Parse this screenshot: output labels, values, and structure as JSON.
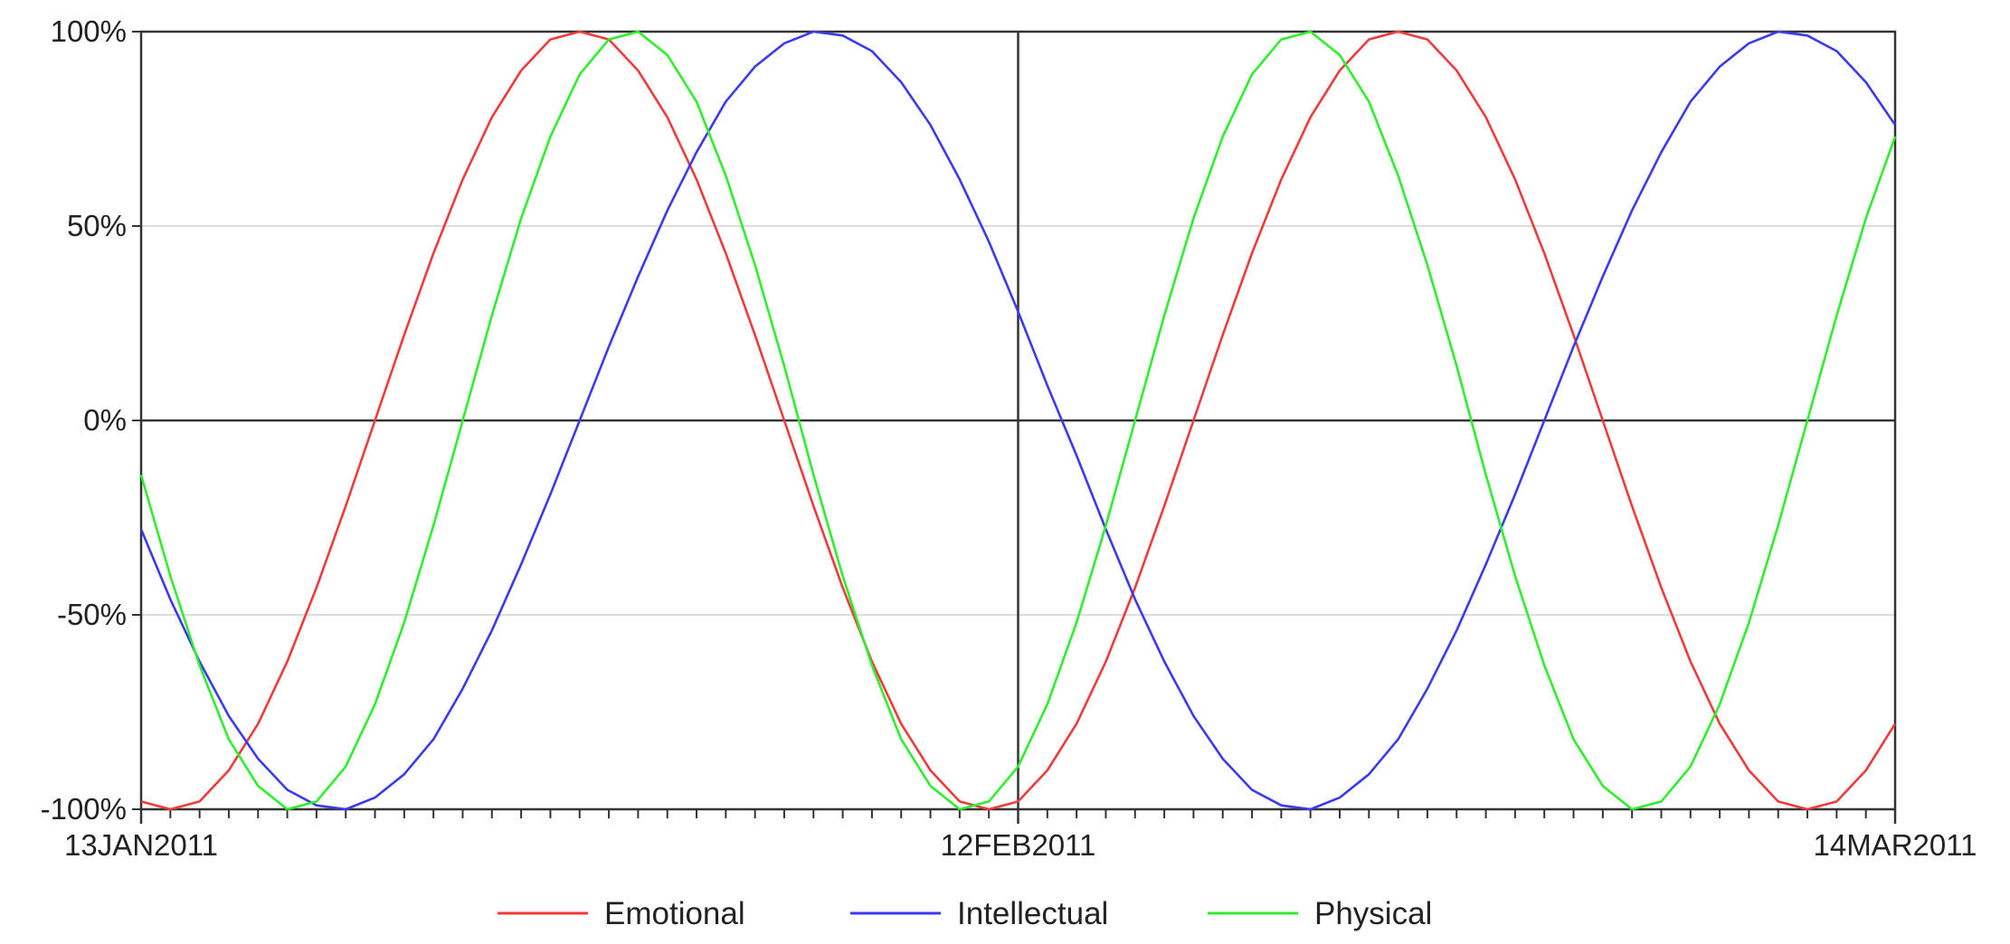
{
  "chart_data": {
    "type": "line",
    "title": "",
    "xlabel": "",
    "ylabel": "",
    "x_range": [
      "13JAN2011",
      "14MAR2011"
    ],
    "x_ticks": [
      "13JAN2011",
      "12FEB2011",
      "14MAR2011"
    ],
    "y_range": [
      -100,
      100
    ],
    "y_ticks": [
      100,
      50,
      0,
      -50,
      -100
    ],
    "y_tick_labels": [
      "100%",
      "50%",
      "0%",
      "-50%",
      "-100%"
    ],
    "grid": true,
    "legend_position": "bottom",
    "series": [
      {
        "name": "Emotional",
        "color": "#ee3b3b",
        "points": [
          [
            "13JAN2011",
            -98
          ],
          [
            "14JAN2011",
            -100
          ],
          [
            "15JAN2011",
            -98
          ],
          [
            "16JAN2011",
            -90
          ],
          [
            "17JAN2011",
            -78
          ],
          [
            "18JAN2011",
            -62
          ],
          [
            "19JAN2011",
            -43
          ],
          [
            "20JAN2011",
            -22
          ],
          [
            "21JAN2011",
            0
          ],
          [
            "22JAN2011",
            22
          ],
          [
            "23JAN2011",
            43
          ],
          [
            "24JAN2011",
            62
          ],
          [
            "25JAN2011",
            78
          ],
          [
            "26JAN2011",
            90
          ],
          [
            "27JAN2011",
            98
          ],
          [
            "28JAN2011",
            100
          ],
          [
            "29JAN2011",
            98
          ],
          [
            "30JAN2011",
            90
          ],
          [
            "31JAN2011",
            78
          ],
          [
            "01FEB2011",
            62
          ],
          [
            "02FEB2011",
            43
          ],
          [
            "03FEB2011",
            22
          ],
          [
            "04FEB2011",
            0
          ],
          [
            "05FEB2011",
            -22
          ],
          [
            "06FEB2011",
            -43
          ],
          [
            "07FEB2011",
            -62
          ],
          [
            "08FEB2011",
            -78
          ],
          [
            "09FEB2011",
            -90
          ],
          [
            "10FEB2011",
            -98
          ],
          [
            "11FEB2011",
            -100
          ],
          [
            "12FEB2011",
            -98
          ],
          [
            "13FEB2011",
            -90
          ],
          [
            "14FEB2011",
            -78
          ],
          [
            "15FEB2011",
            -62
          ],
          [
            "16FEB2011",
            -43
          ],
          [
            "17FEB2011",
            -22
          ],
          [
            "18FEB2011",
            0
          ],
          [
            "19FEB2011",
            22
          ],
          [
            "20FEB2011",
            43
          ],
          [
            "21FEB2011",
            62
          ],
          [
            "22FEB2011",
            78
          ],
          [
            "23FEB2011",
            90
          ],
          [
            "24FEB2011",
            98
          ],
          [
            "25FEB2011",
            100
          ],
          [
            "26FEB2011",
            98
          ],
          [
            "27FEB2011",
            90
          ],
          [
            "28FEB2011",
            78
          ],
          [
            "01MAR2011",
            62
          ],
          [
            "02MAR2011",
            43
          ],
          [
            "03MAR2011",
            22
          ],
          [
            "04MAR2011",
            0
          ],
          [
            "05MAR2011",
            -22
          ],
          [
            "06MAR2011",
            -43
          ],
          [
            "07MAR2011",
            -62
          ],
          [
            "08MAR2011",
            -78
          ],
          [
            "09MAR2011",
            -90
          ],
          [
            "10MAR2011",
            -98
          ],
          [
            "11MAR2011",
            -100
          ],
          [
            "12MAR2011",
            -98
          ],
          [
            "13MAR2011",
            -90
          ],
          [
            "14MAR2011",
            -78
          ]
        ]
      },
      {
        "name": "Intellectual",
        "color": "#3a3aee",
        "points": [
          [
            "13JAN2011",
            -28
          ],
          [
            "14JAN2011",
            -46
          ],
          [
            "15JAN2011",
            -62
          ],
          [
            "16JAN2011",
            -76
          ],
          [
            "17JAN2011",
            -87
          ],
          [
            "18JAN2011",
            -95
          ],
          [
            "19JAN2011",
            -99
          ],
          [
            "20JAN2011",
            -100
          ],
          [
            "21JAN2011",
            -97
          ],
          [
            "22JAN2011",
            -91
          ],
          [
            "23JAN2011",
            -82
          ],
          [
            "24JAN2011",
            -69
          ],
          [
            "25JAN2011",
            -54
          ],
          [
            "26JAN2011",
            -37
          ],
          [
            "27JAN2011",
            -19
          ],
          [
            "28JAN2011",
            0
          ],
          [
            "29JAN2011",
            19
          ],
          [
            "30JAN2011",
            37
          ],
          [
            "31JAN2011",
            54
          ],
          [
            "01FEB2011",
            69
          ],
          [
            "02FEB2011",
            82
          ],
          [
            "03FEB2011",
            91
          ],
          [
            "04FEB2011",
            97
          ],
          [
            "05FEB2011",
            100
          ],
          [
            "06FEB2011",
            99
          ],
          [
            "07FEB2011",
            95
          ],
          [
            "08FEB2011",
            87
          ],
          [
            "09FEB2011",
            76
          ],
          [
            "10FEB2011",
            62
          ],
          [
            "11FEB2011",
            46
          ],
          [
            "12FEB2011",
            28
          ],
          [
            "13FEB2011",
            9
          ],
          [
            "14FEB2011",
            -9
          ],
          [
            "15FEB2011",
            -28
          ],
          [
            "16FEB2011",
            -46
          ],
          [
            "17FEB2011",
            -62
          ],
          [
            "18FEB2011",
            -76
          ],
          [
            "19FEB2011",
            -87
          ],
          [
            "20FEB2011",
            -95
          ],
          [
            "21FEB2011",
            -99
          ],
          [
            "22FEB2011",
            -100
          ],
          [
            "23FEB2011",
            -97
          ],
          [
            "24FEB2011",
            -91
          ],
          [
            "25FEB2011",
            -82
          ],
          [
            "26FEB2011",
            -69
          ],
          [
            "27FEB2011",
            -54
          ],
          [
            "28FEB2011",
            -37
          ],
          [
            "01MAR2011",
            -19
          ],
          [
            "02MAR2011",
            0
          ],
          [
            "03MAR2011",
            19
          ],
          [
            "04MAR2011",
            37
          ],
          [
            "05MAR2011",
            54
          ],
          [
            "06MAR2011",
            69
          ],
          [
            "07MAR2011",
            82
          ],
          [
            "08MAR2011",
            91
          ],
          [
            "09MAR2011",
            97
          ],
          [
            "10MAR2011",
            100
          ],
          [
            "11MAR2011",
            99
          ],
          [
            "12MAR2011",
            95
          ],
          [
            "13MAR2011",
            87
          ],
          [
            "14MAR2011",
            76
          ]
        ]
      },
      {
        "name": "Physical",
        "color": "#2eee2e",
        "points": [
          [
            "13JAN2011",
            -14
          ],
          [
            "14JAN2011",
            -40
          ],
          [
            "15JAN2011",
            -63
          ],
          [
            "16JAN2011",
            -82
          ],
          [
            "17JAN2011",
            -94
          ],
          [
            "18JAN2011",
            -100
          ],
          [
            "19JAN2011",
            -98
          ],
          [
            "20JAN2011",
            -89
          ],
          [
            "21JAN2011",
            -73
          ],
          [
            "22JAN2011",
            -52
          ],
          [
            "23JAN2011",
            -27
          ],
          [
            "24JAN2011",
            0
          ],
          [
            "25JAN2011",
            27
          ],
          [
            "26JAN2011",
            52
          ],
          [
            "27JAN2011",
            73
          ],
          [
            "28JAN2011",
            89
          ],
          [
            "29JAN2011",
            98
          ],
          [
            "30JAN2011",
            100
          ],
          [
            "31JAN2011",
            94
          ],
          [
            "01FEB2011",
            82
          ],
          [
            "02FEB2011",
            63
          ],
          [
            "03FEB2011",
            40
          ],
          [
            "04FEB2011",
            14
          ],
          [
            "05FEB2011",
            -14
          ],
          [
            "06FEB2011",
            -40
          ],
          [
            "07FEB2011",
            -63
          ],
          [
            "08FEB2011",
            -82
          ],
          [
            "09FEB2011",
            -94
          ],
          [
            "10FEB2011",
            -100
          ],
          [
            "11FEB2011",
            -98
          ],
          [
            "12FEB2011",
            -89
          ],
          [
            "13FEB2011",
            -73
          ],
          [
            "14FEB2011",
            -52
          ],
          [
            "15FEB2011",
            -27
          ],
          [
            "16FEB2011",
            0
          ],
          [
            "17FEB2011",
            27
          ],
          [
            "18FEB2011",
            52
          ],
          [
            "19FEB2011",
            73
          ],
          [
            "20FEB2011",
            89
          ],
          [
            "21FEB2011",
            98
          ],
          [
            "22FEB2011",
            100
          ],
          [
            "23FEB2011",
            94
          ],
          [
            "24FEB2011",
            82
          ],
          [
            "25FEB2011",
            63
          ],
          [
            "26FEB2011",
            40
          ],
          [
            "27FEB2011",
            14
          ],
          [
            "28FEB2011",
            -14
          ],
          [
            "01MAR2011",
            -40
          ],
          [
            "02MAR2011",
            -63
          ],
          [
            "03MAR2011",
            -82
          ],
          [
            "04MAR2011",
            -94
          ],
          [
            "05MAR2011",
            -100
          ],
          [
            "06MAR2011",
            -98
          ],
          [
            "07MAR2011",
            -89
          ],
          [
            "08MAR2011",
            -73
          ],
          [
            "09MAR2011",
            -52
          ],
          [
            "10MAR2011",
            -27
          ],
          [
            "11MAR2011",
            0
          ],
          [
            "12MAR2011",
            27
          ],
          [
            "13MAR2011",
            52
          ],
          [
            "14MAR2011",
            73
          ]
        ]
      }
    ],
    "reference_lines": {
      "x": "12FEB2011",
      "y": 0
    }
  }
}
